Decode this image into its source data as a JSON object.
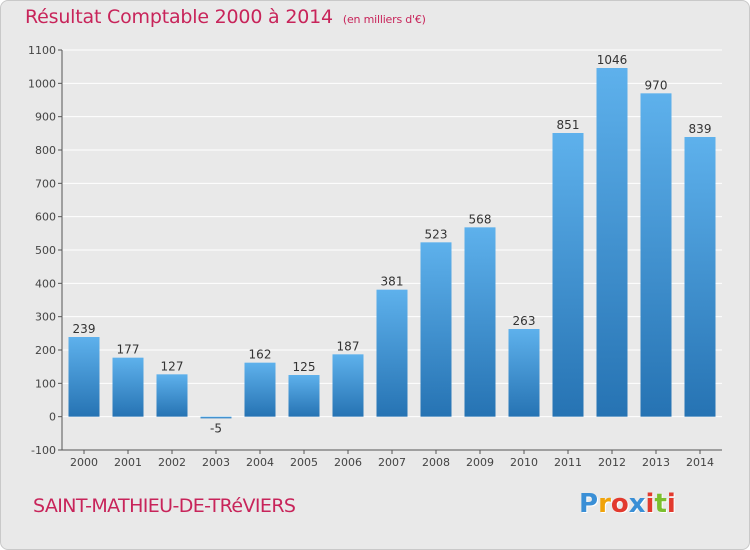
{
  "header": {
    "title": "Résultat Comptable 2000 à 2014",
    "unit": "(en milliers d'€)"
  },
  "footer": {
    "place": "SAINT-MATHIEU-DE-TRéVIERS",
    "logo_letters": [
      "P",
      "r",
      "o",
      "x",
      "i",
      "t",
      "i"
    ],
    "logo_colors": [
      "#3a8fd6",
      "#f0a30a",
      "#e23a2e",
      "#3a8fd6",
      "#e23a2e",
      "#7bbf2e",
      "#e23a2e"
    ]
  },
  "colors": {
    "bar_light": "#5eb1ec",
    "bar_dark": "#2673b3",
    "title": "#c8245a",
    "grid": "#ffffff",
    "axis": "#555555"
  },
  "chart_data": {
    "type": "bar",
    "categories": [
      "2000",
      "2001",
      "2002",
      "2003",
      "2004",
      "2005",
      "2006",
      "2007",
      "2008",
      "2009",
      "2010",
      "2011",
      "2012",
      "2013",
      "2014"
    ],
    "values": [
      239,
      177,
      127,
      -5,
      162,
      125,
      187,
      381,
      523,
      568,
      263,
      851,
      1046,
      970,
      839
    ],
    "ylim": [
      -100,
      1100
    ],
    "yticks": [
      -100,
      0,
      100,
      200,
      300,
      400,
      500,
      600,
      700,
      800,
      900,
      1000,
      1100
    ],
    "grid": true
  }
}
